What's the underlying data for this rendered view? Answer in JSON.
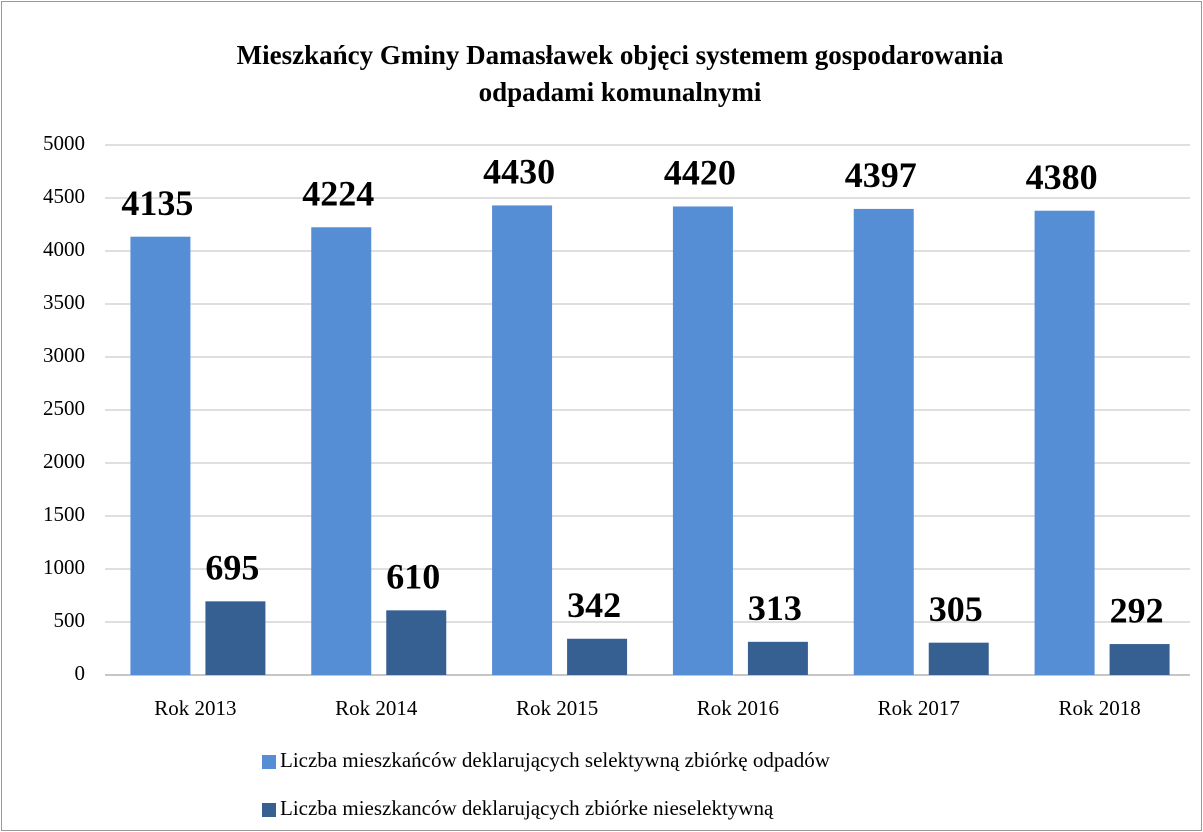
{
  "chart_data": {
    "type": "bar",
    "title": [
      "Mieszkańcy Gminy Damasławek objęci systemem gospodarowania",
      "odpadami komunalnymi"
    ],
    "categories": [
      "Rok 2013",
      "Rok 2014",
      "Rok 2015",
      "Rok 2016",
      "Rok 2017",
      "Rok 2018"
    ],
    "series": [
      {
        "name": "Liczba mieszkańców deklarujących selektywną zbiórkę odpadów",
        "color": "#558ed5",
        "values": [
          4135,
          4224,
          4430,
          4420,
          4397,
          4380
        ]
      },
      {
        "name": "Liczba mieszkanców deklarujących zbiórke nieselektywną",
        "color": "#376092",
        "values": [
          695,
          610,
          342,
          313,
          305,
          292
        ]
      }
    ],
    "ylim": [
      0,
      5000
    ],
    "yticks": [
      0,
      500,
      1000,
      1500,
      2000,
      2500,
      3000,
      3500,
      4000,
      4500,
      5000
    ],
    "grid": true,
    "legend": "bottom"
  }
}
